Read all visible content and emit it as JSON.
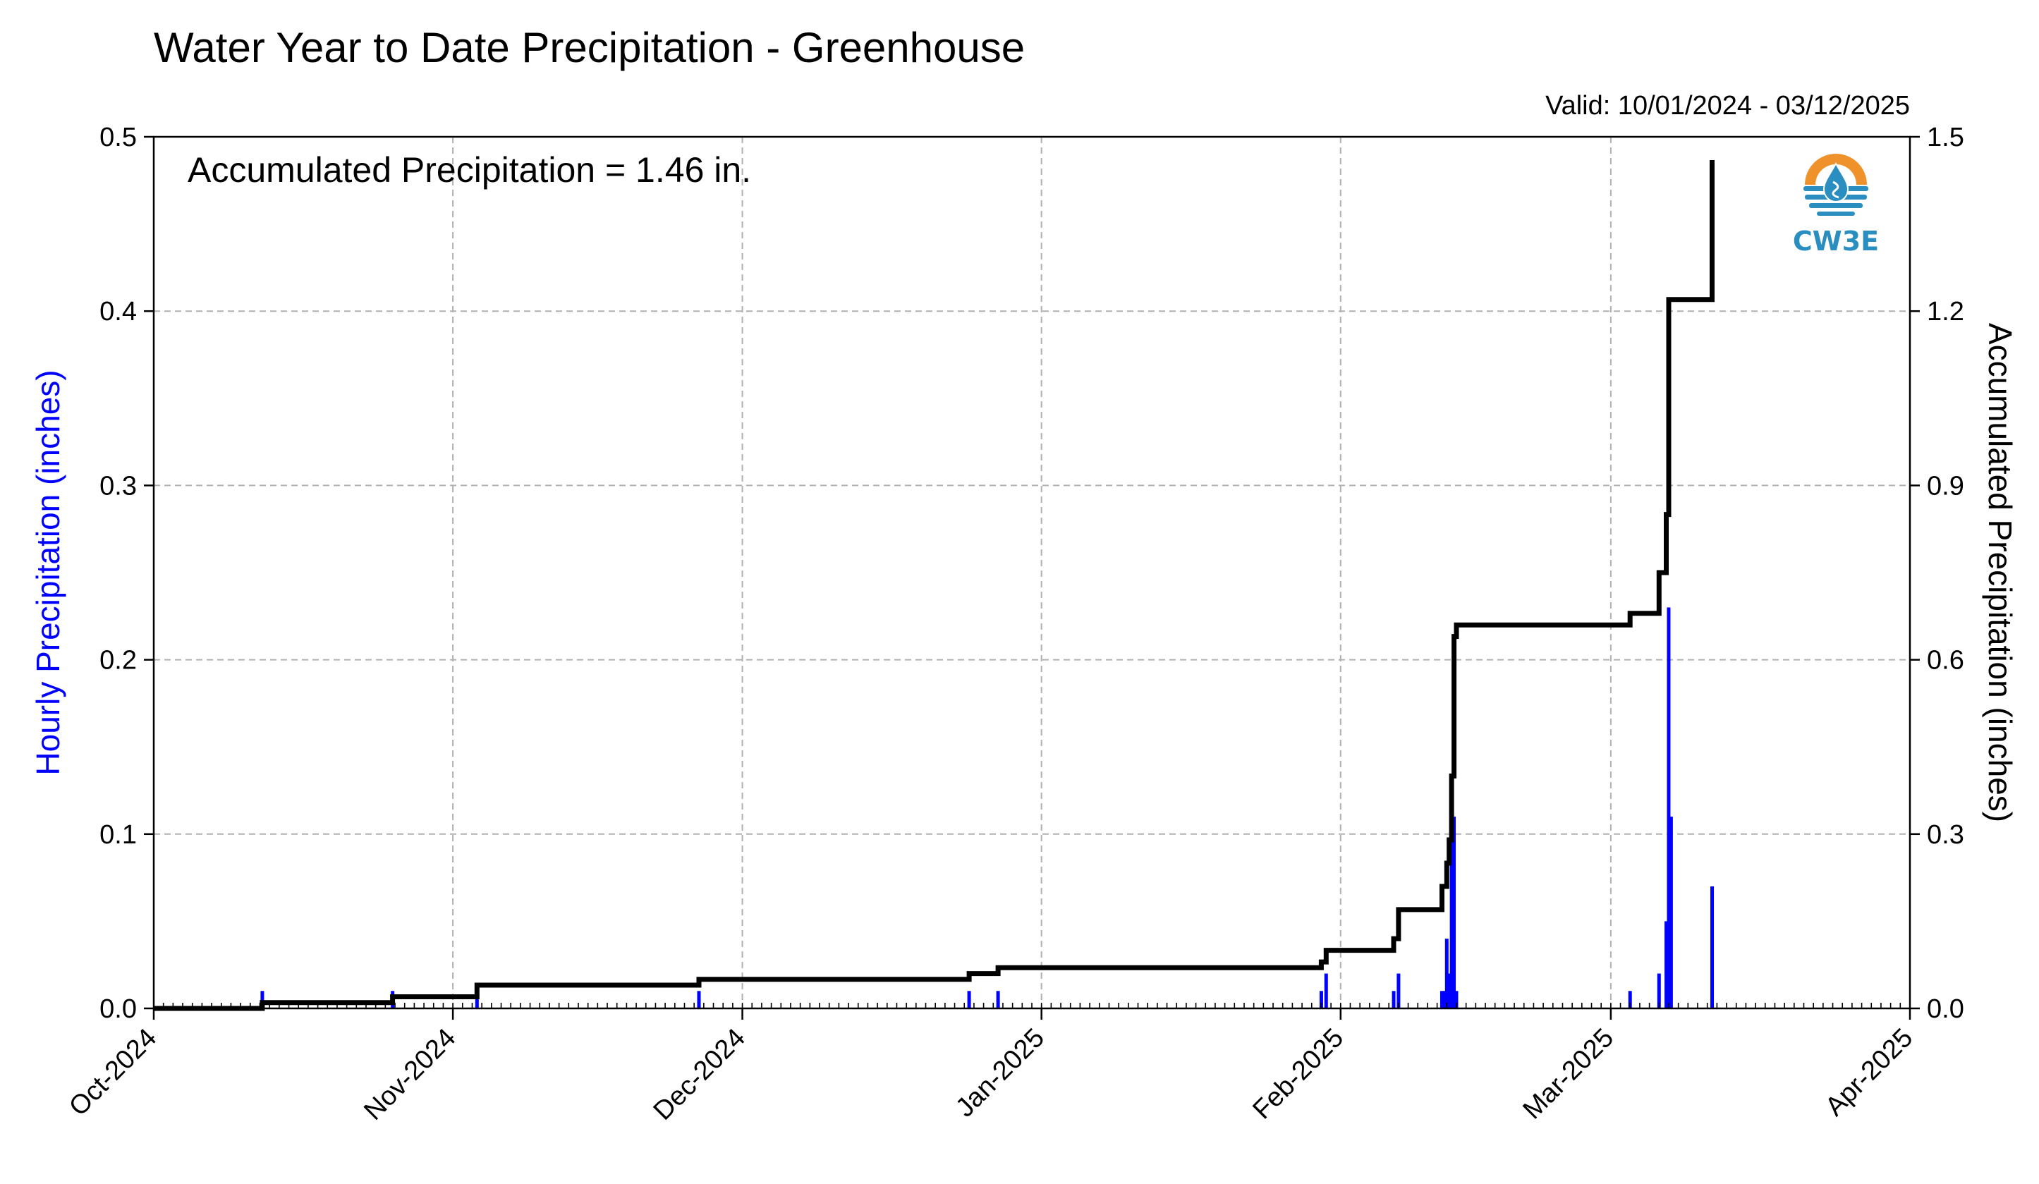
{
  "title": "Water Year to Date Precipitation - Greenhouse",
  "valid_text": "Valid: 10/01/2024 - 03/12/2025",
  "annotation": "Accumulated Precipitation = 1.46 in.",
  "logo": {
    "text": "CW3E",
    "icon": "water-drop-sun-icon",
    "colors": {
      "orange": "#f0922b",
      "blue": "#2a8fc0"
    }
  },
  "colors": {
    "hourly": "#0000ff",
    "accumulated": "#000000",
    "grid": "#b0b0b0"
  },
  "chart_data": {
    "type": "bar",
    "x_start": "2024-10-01",
    "x_end": "2025-04-01",
    "xtick_labels": [
      "Oct-2024",
      "Nov-2024",
      "Dec-2024",
      "Jan-2025",
      "Feb-2025",
      "Mar-2025",
      "Apr-2025"
    ],
    "xtick_dates": [
      "2024-10-01",
      "2024-11-01",
      "2024-12-01",
      "2025-01-01",
      "2025-02-01",
      "2025-03-01",
      "2025-04-01"
    ],
    "ylabel": "Hourly Precipitation (inches)",
    "ylabel_right": "Accumulated Precipitation (inches)",
    "ylim": [
      0,
      0.5
    ],
    "ylim_right": [
      0,
      1.5
    ],
    "yticks": [
      "0.0",
      "0.1",
      "0.2",
      "0.3",
      "0.4",
      "0.5"
    ],
    "yticks_right": [
      "0.0",
      "0.3",
      "0.6",
      "0.9",
      "1.2",
      "1.5"
    ],
    "grid": true,
    "series": [
      {
        "name": "Hourly Precipitation",
        "axis": "left",
        "kind": "bar",
        "points": [
          [
            "2024-10-12T06:00",
            0.01
          ],
          [
            "2024-10-25T18:00",
            0.01
          ],
          [
            "2024-11-03T12:00",
            0.01
          ],
          [
            "2024-11-26T12:00",
            0.01
          ],
          [
            "2024-12-24T12:00",
            0.01
          ],
          [
            "2024-12-27T12:00",
            0.01
          ],
          [
            "2025-01-30T00:00",
            0.01
          ],
          [
            "2025-01-30T12:00",
            0.02
          ],
          [
            "2025-02-06T12:00",
            0.01
          ],
          [
            "2025-02-07T00:00",
            0.02
          ],
          [
            "2025-02-11T12:00",
            0.01
          ],
          [
            "2025-02-11T18:00",
            0.01
          ],
          [
            "2025-02-12T00:00",
            0.04
          ],
          [
            "2025-02-12T06:00",
            0.02
          ],
          [
            "2025-02-12T12:00",
            0.1
          ],
          [
            "2025-02-12T18:00",
            0.11
          ],
          [
            "2025-02-13T00:00",
            0.01
          ],
          [
            "2025-03-03T00:00",
            0.01
          ],
          [
            "2025-03-06T00:00",
            0.02
          ],
          [
            "2025-03-06T18:00",
            0.05
          ],
          [
            "2025-03-07T00:00",
            0.23
          ],
          [
            "2025-03-07T06:00",
            0.11
          ],
          [
            "2025-03-11T12:00",
            0.07
          ]
        ]
      },
      {
        "name": "Accumulated Precipitation",
        "axis": "right",
        "kind": "step",
        "points": [
          [
            "2024-10-01T00:00",
            0.0
          ],
          [
            "2024-10-12T06:00",
            0.01
          ],
          [
            "2024-10-25T18:00",
            0.02
          ],
          [
            "2024-11-03T12:00",
            0.04
          ],
          [
            "2024-11-26T12:00",
            0.05
          ],
          [
            "2024-12-24T12:00",
            0.06
          ],
          [
            "2024-12-27T12:00",
            0.07
          ],
          [
            "2025-01-30T00:00",
            0.08
          ],
          [
            "2025-01-30T12:00",
            0.1
          ],
          [
            "2025-02-06T12:00",
            0.12
          ],
          [
            "2025-02-07T00:00",
            0.17
          ],
          [
            "2025-02-11T12:00",
            0.21
          ],
          [
            "2025-02-12T00:00",
            0.25
          ],
          [
            "2025-02-12T06:00",
            0.29
          ],
          [
            "2025-02-12T12:00",
            0.4
          ],
          [
            "2025-02-12T18:00",
            0.64
          ],
          [
            "2025-02-13T00:00",
            0.66
          ],
          [
            "2025-03-03T00:00",
            0.68
          ],
          [
            "2025-03-06T00:00",
            0.75
          ],
          [
            "2025-03-06T18:00",
            0.85
          ],
          [
            "2025-03-07T00:00",
            1.22
          ],
          [
            "2025-03-11T12:00",
            1.46
          ]
        ]
      }
    ]
  }
}
